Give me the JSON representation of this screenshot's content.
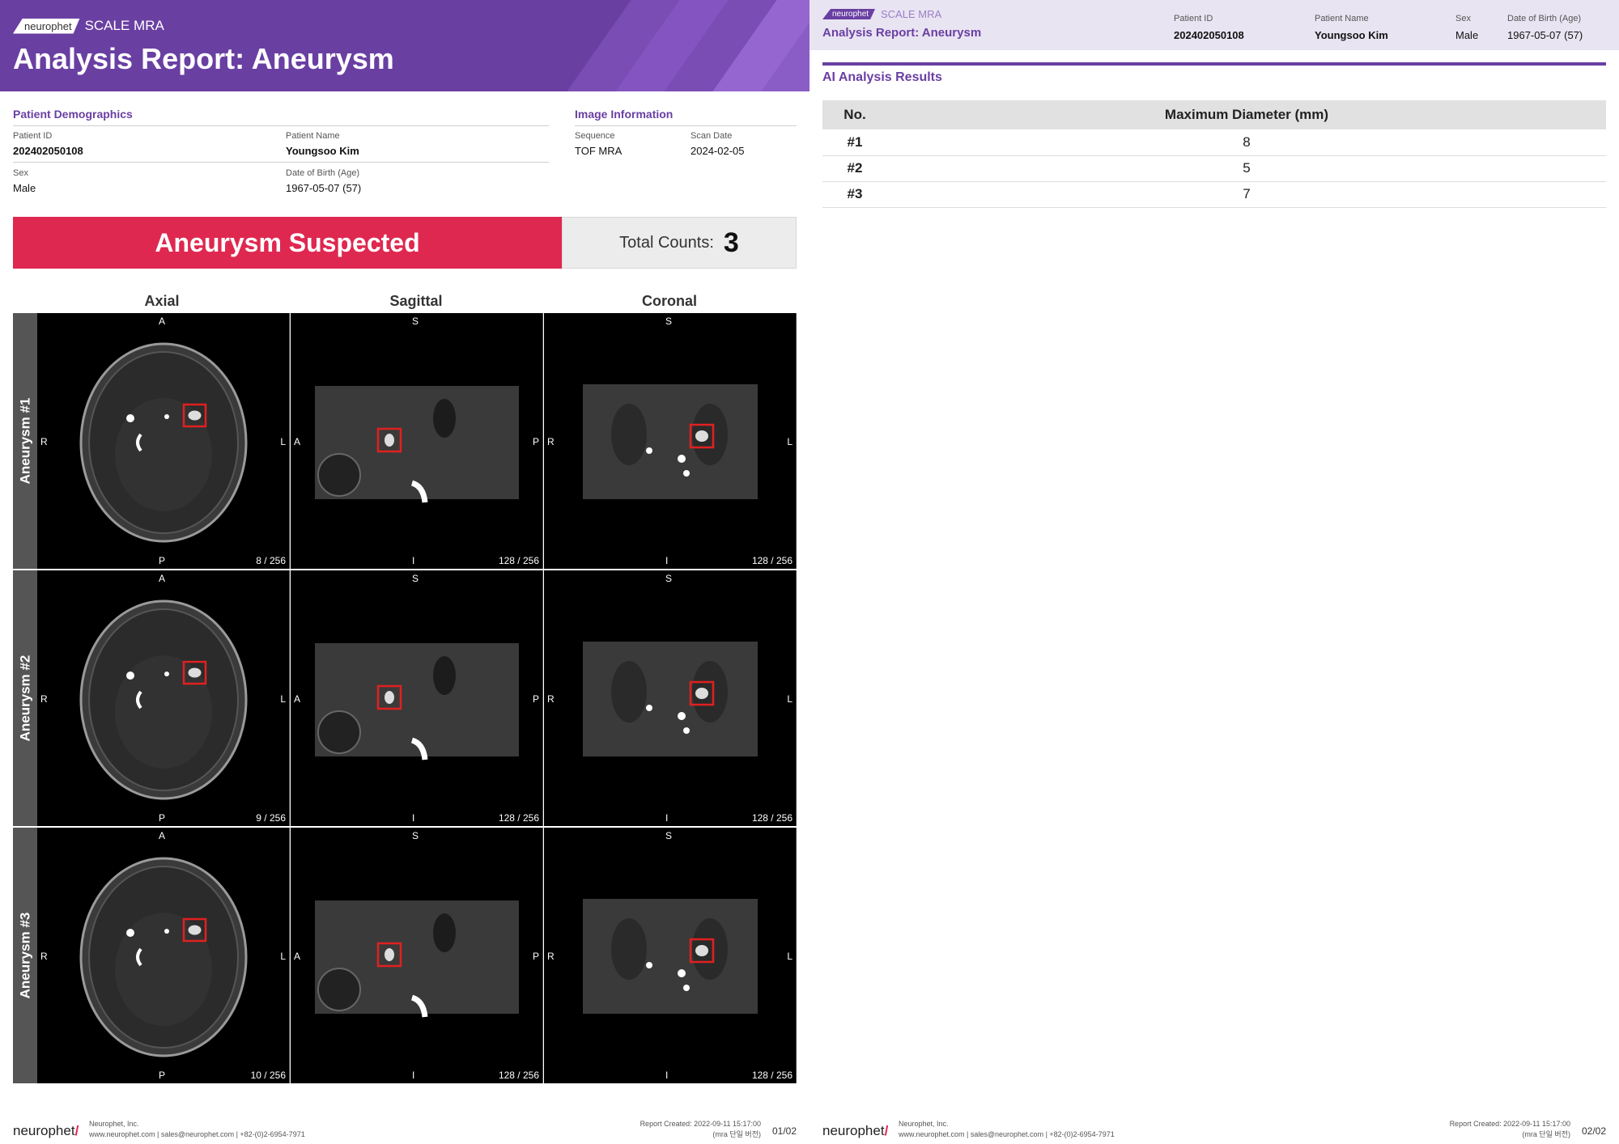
{
  "header": {
    "logo": "neurophet",
    "product": "SCALE MRA",
    "title": "Analysis Report: Aneurysm"
  },
  "demographics": {
    "section_title": "Patient Demographics",
    "patient_id_label": "Patient ID",
    "patient_id": "202402050108",
    "patient_name_label": "Patient Name",
    "patient_name": "Youngsoo Kim",
    "sex_label": "Sex",
    "sex": "Male",
    "dob_label": "Date of Birth (Age)",
    "dob": "1967-05-07 (57)"
  },
  "image_info": {
    "section_title": "Image Information",
    "sequence_label": "Sequence",
    "sequence": "TOF MRA",
    "scan_date_label": "Scan Date",
    "scan_date": "2024-02-05"
  },
  "summary": {
    "status": "Aneurysm Suspected",
    "total_label": "Total Counts:",
    "total": "3"
  },
  "views": {
    "axial": "Axial",
    "sagittal": "Sagittal",
    "coronal": "Coronal"
  },
  "orientation": {
    "axial": {
      "top": "A",
      "bottom": "P",
      "left": "R",
      "right": "L"
    },
    "sagittal": {
      "top": "S",
      "bottom": "I",
      "left": "A",
      "right": "P"
    },
    "coronal": {
      "top": "S",
      "bottom": "I",
      "left": "R",
      "right": "L"
    }
  },
  "aneurysms": [
    {
      "label": "Aneurysm #1",
      "axial_slice": "8 / 256",
      "sagittal_slice": "128 / 256",
      "coronal_slice": "128 / 256"
    },
    {
      "label": "Aneurysm #2",
      "axial_slice": "9 / 256",
      "sagittal_slice": "128 / 256",
      "coronal_slice": "128 / 256"
    },
    {
      "label": "Aneurysm #3",
      "axial_slice": "10 / 256",
      "sagittal_slice": "128 / 256",
      "coronal_slice": "128 / 256"
    }
  ],
  "footer": {
    "logo": "neurophet",
    "company": "Neurophet, Inc.",
    "contact": "www.neurophet.com | sales@neurophet.com | +82-(0)2-6954-7971",
    "created": "Report Created: 2022-09-11 15:17:00",
    "version": "(mra 단일 버전)",
    "page1": "01/02",
    "page2": "02/02"
  },
  "page2": {
    "logo": "neurophet",
    "product": "SCALE MRA",
    "title": "Analysis Report: Aneurysm",
    "patient_id_label": "Patient ID",
    "patient_id": "202402050108",
    "patient_name_label": "Patient Name",
    "patient_name": "Youngsoo Kim",
    "sex_label": "Sex",
    "sex": "Male",
    "dob_label": "Date of Birth (Age)",
    "dob": "1967-05-07 (57)",
    "results_title": "AI Analysis Results",
    "col_no": "No.",
    "col_diameter": "Maximum Diameter (mm)",
    "rows": [
      {
        "no": "#1",
        "diameter": "8"
      },
      {
        "no": "#2",
        "diameter": "5"
      },
      {
        "no": "#3",
        "diameter": "7"
      }
    ]
  },
  "colors": {
    "brand_purple": "#6a3fa2",
    "alert_red": "#df2850",
    "box_red": "#e02020"
  }
}
